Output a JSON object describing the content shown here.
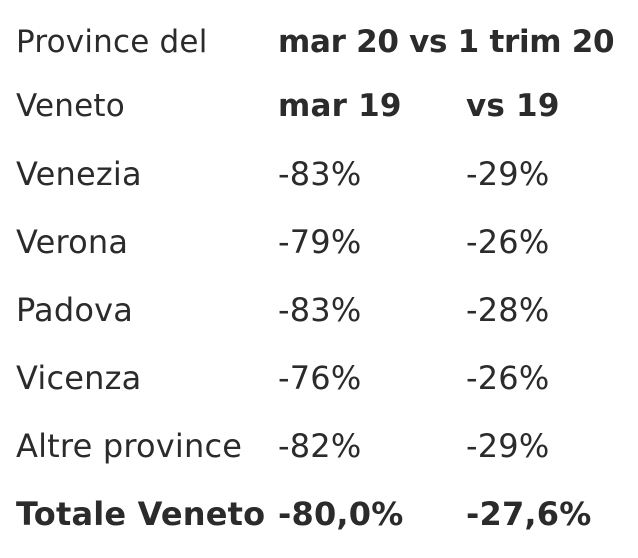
{
  "header": {
    "line1": {
      "province": "Province del",
      "title": "mar 20 vs 1 trim 20"
    },
    "line2": {
      "province": "Veneto",
      "col_mar": "mar 19",
      "col_trim": "vs 19"
    }
  },
  "rows": [
    {
      "province": "Venezia",
      "mar": "-83%",
      "trim": "-29%"
    },
    {
      "province": "Verona",
      "mar": "-79%",
      "trim": "-26%"
    },
    {
      "province": "Padova",
      "mar": "-83%",
      "trim": "-28%"
    },
    {
      "province": "Vicenza",
      "mar": "-76%",
      "trim": "-26%"
    },
    {
      "province": "Altre province",
      "mar": "-82%",
      "trim": "-29%"
    }
  ],
  "total": {
    "province": "Totale Veneto",
    "mar": "-80,0%",
    "trim": "-27,6%"
  }
}
